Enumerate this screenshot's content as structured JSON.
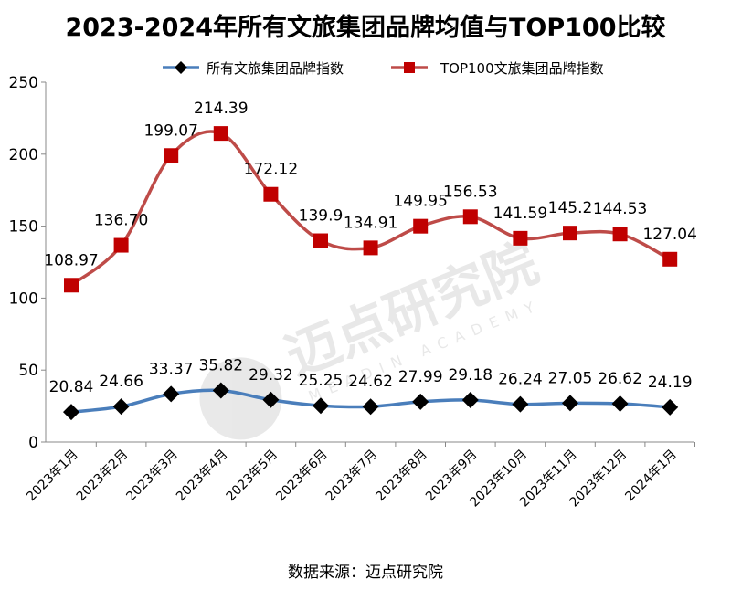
{
  "chart_data": {
    "type": "line",
    "title": "2023-2024年所有文旅集团品牌均值与TOP100比较",
    "source": "数据来源：迈点研究院",
    "watermark": {
      "cn": "迈点研究院",
      "en": "MEADIN ACADEMY"
    },
    "categories": [
      "2023年1月",
      "2023年2月",
      "2023年3月",
      "2023年4月",
      "2023年5月",
      "2023年6月",
      "2023年7月",
      "2023年8月",
      "2023年9月",
      "2023年10月",
      "2023年11月",
      "2023年12月",
      "2024年1月"
    ],
    "series": [
      {
        "name": "所有文旅集团品牌指数",
        "color": "#4a7ebb",
        "marker": "diamond",
        "values": [
          20.84,
          24.66,
          33.37,
          35.82,
          29.32,
          25.25,
          24.62,
          27.99,
          29.18,
          26.24,
          27.05,
          26.62,
          24.19
        ],
        "labels": [
          "20.84",
          "24.66",
          "33.37",
          "35.82",
          "29.32",
          "25.25",
          "24.62",
          "27.99",
          "29.18",
          "26.24",
          "27.05",
          "26.62",
          "24.19"
        ]
      },
      {
        "name": "TOP100文旅集团品牌指数",
        "color": "#be4b48",
        "marker": "square",
        "values": [
          108.97,
          136.7,
          199.07,
          214.39,
          172.12,
          139.9,
          134.91,
          149.95,
          156.53,
          141.59,
          145.2,
          144.53,
          127.04
        ],
        "labels": [
          "108.97",
          "136.70",
          "199.07",
          "214.39",
          "172.12",
          "139.9",
          "134.91",
          "149.95",
          "156.53",
          "141.59",
          "145.2",
          "144.53",
          "127.04"
        ]
      }
    ],
    "ylim": [
      0,
      250
    ],
    "yticks": [
      0,
      50,
      100,
      150,
      200,
      250
    ],
    "grid": false,
    "legend": "top",
    "xlabel": "",
    "ylabel": ""
  }
}
